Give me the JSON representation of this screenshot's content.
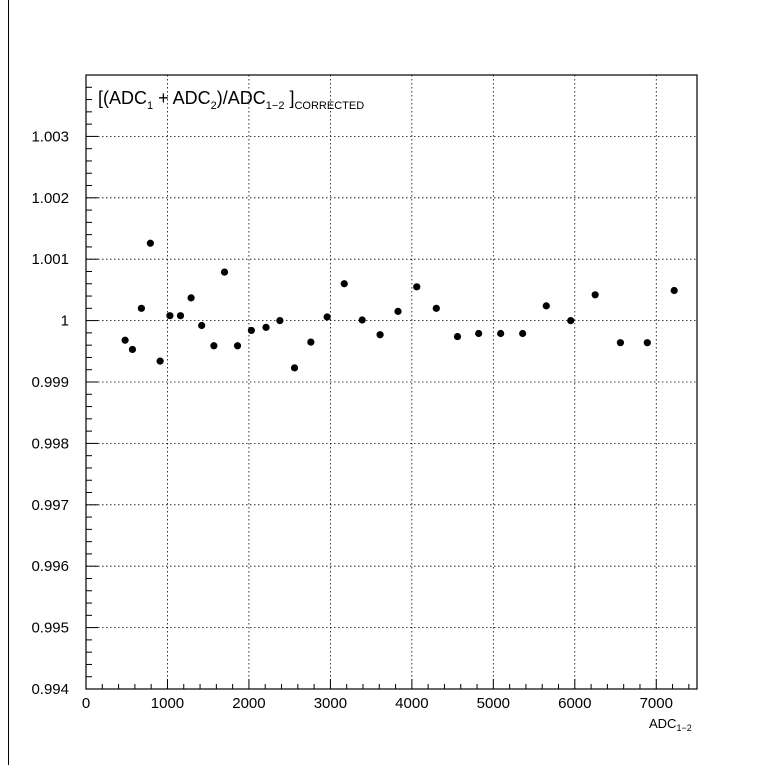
{
  "chart_data": {
    "type": "scatter",
    "title": {
      "parts": [
        {
          "text": "[(ADC",
          "style": "normal"
        },
        {
          "text": "1",
          "style": "sub"
        },
        {
          "text": " + ADC",
          "style": "normal"
        },
        {
          "text": "2",
          "style": "sub"
        },
        {
          "text": ")/ADC",
          "style": "normal"
        },
        {
          "text": "1−2",
          "style": "sub"
        },
        {
          "text": " ]",
          "style": "normal"
        },
        {
          "text": "CORRECTED",
          "style": "sub"
        }
      ]
    },
    "xlabel": {
      "parts": [
        {
          "text": "ADC",
          "style": "normal"
        },
        {
          "text": "1−2",
          "style": "sub"
        }
      ]
    },
    "ylabel": "",
    "xlim": [
      0,
      7500
    ],
    "ylim": [
      0.994,
      1.004
    ],
    "x_ticks": [
      0,
      1000,
      2000,
      3000,
      4000,
      5000,
      6000,
      7000
    ],
    "x_tick_labels": [
      "0",
      "1000",
      "2000",
      "3000",
      "4000",
      "5000",
      "6000",
      "7000"
    ],
    "y_ticks": [
      0.994,
      0.995,
      0.996,
      0.997,
      0.998,
      0.999,
      1.0,
      1.001,
      1.002,
      1.003
    ],
    "y_tick_labels": [
      "0.994",
      "0.995",
      "0.996",
      "0.997",
      "0.998",
      "0.999",
      "1",
      "1.001",
      "1.002",
      "1.003"
    ],
    "grid": true,
    "marker_color": "#000000",
    "points": [
      {
        "x": 480,
        "y": 0.99968
      },
      {
        "x": 570,
        "y": 0.99953
      },
      {
        "x": 680,
        "y": 1.0002
      },
      {
        "x": 790,
        "y": 1.00126
      },
      {
        "x": 910,
        "y": 0.99934
      },
      {
        "x": 1030,
        "y": 1.00008
      },
      {
        "x": 1160,
        "y": 1.00008
      },
      {
        "x": 1290,
        "y": 1.00037
      },
      {
        "x": 1420,
        "y": 0.99992
      },
      {
        "x": 1570,
        "y": 0.99959
      },
      {
        "x": 1700,
        "y": 1.00079
      },
      {
        "x": 1860,
        "y": 0.99959
      },
      {
        "x": 2030,
        "y": 0.99984
      },
      {
        "x": 2210,
        "y": 0.99989
      },
      {
        "x": 2380,
        "y": 1.0
      },
      {
        "x": 2560,
        "y": 0.99923
      },
      {
        "x": 2760,
        "y": 0.99965
      },
      {
        "x": 2960,
        "y": 1.00006
      },
      {
        "x": 3170,
        "y": 1.0006
      },
      {
        "x": 3390,
        "y": 1.00001
      },
      {
        "x": 3610,
        "y": 0.99977
      },
      {
        "x": 3830,
        "y": 1.00015
      },
      {
        "x": 4060,
        "y": 1.00055
      },
      {
        "x": 4300,
        "y": 1.0002
      },
      {
        "x": 4560,
        "y": 0.99974
      },
      {
        "x": 4820,
        "y": 0.99979
      },
      {
        "x": 5090,
        "y": 0.99979
      },
      {
        "x": 5360,
        "y": 0.99979
      },
      {
        "x": 5650,
        "y": 1.00024
      },
      {
        "x": 5950,
        "y": 1.0
      },
      {
        "x": 6250,
        "y": 1.00042
      },
      {
        "x": 6560,
        "y": 0.99964
      },
      {
        "x": 6890,
        "y": 0.99964
      },
      {
        "x": 7220,
        "y": 1.00049
      }
    ]
  }
}
